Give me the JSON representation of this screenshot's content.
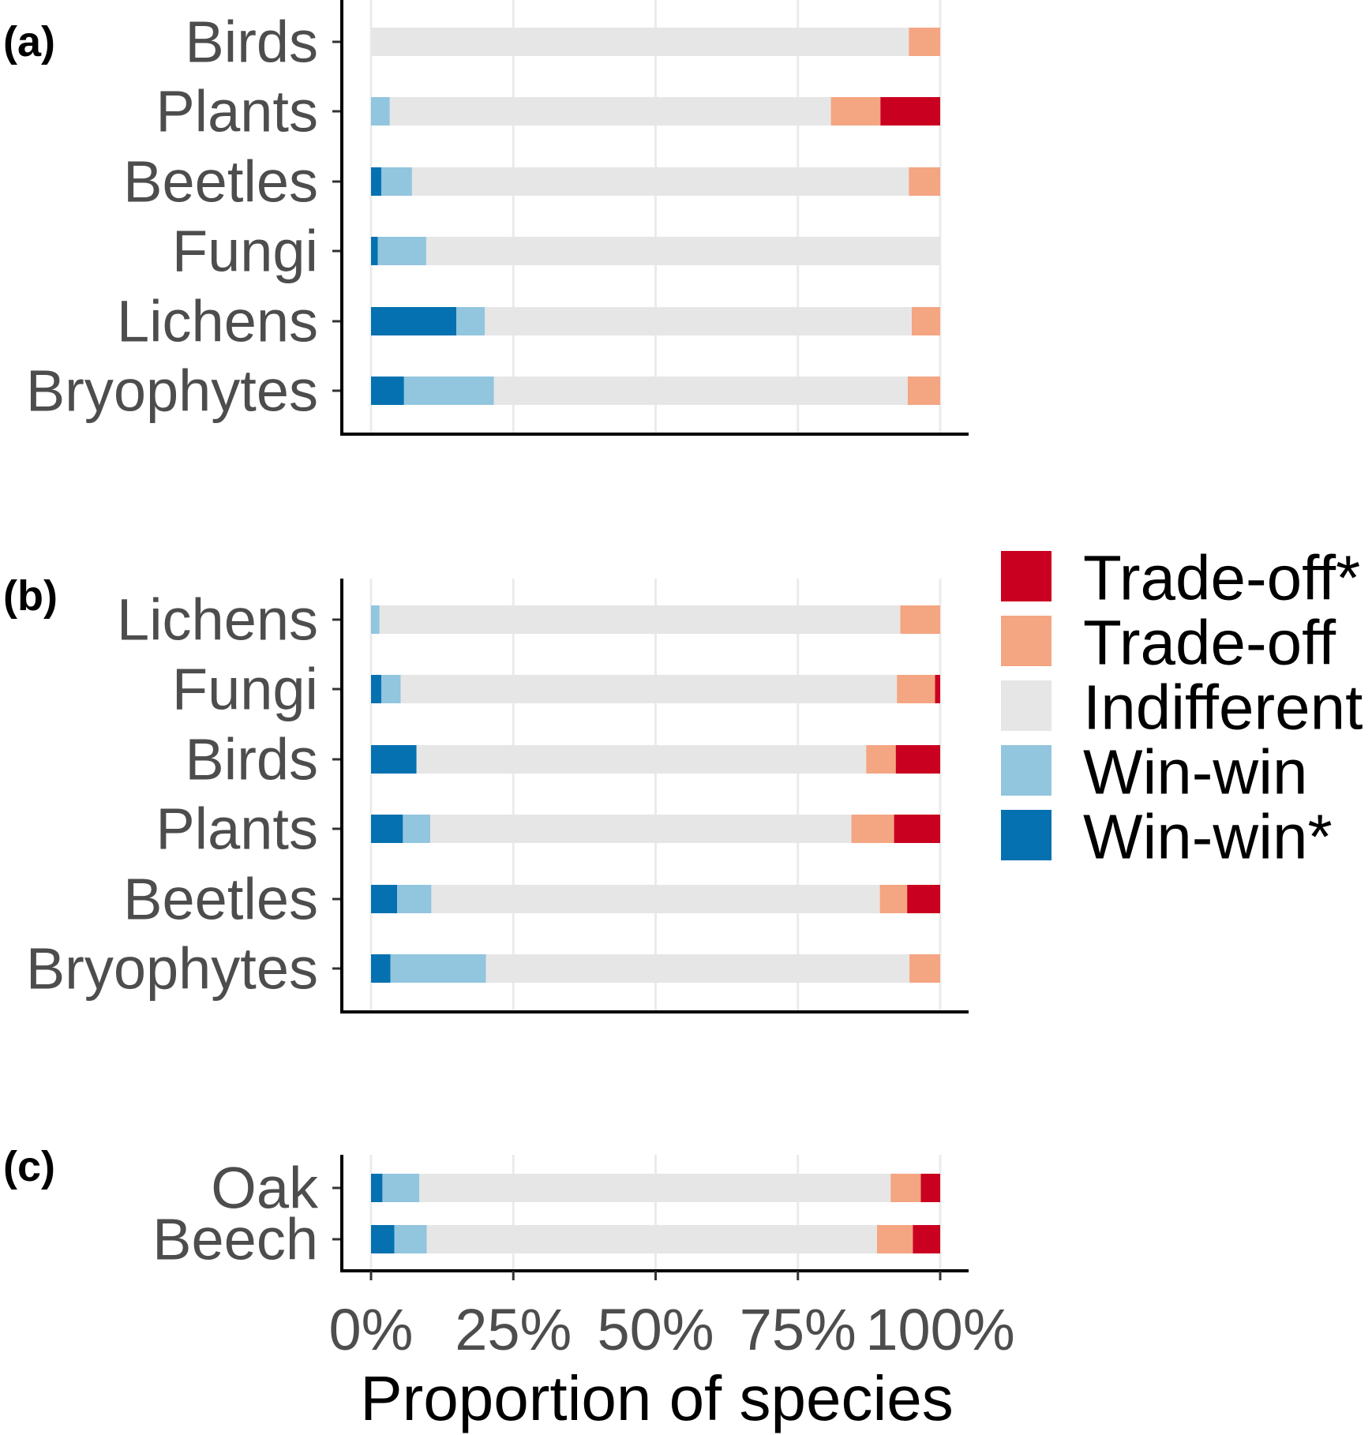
{
  "chart_data": [
    {
      "type": "bar",
      "orientation": "horizontal",
      "stacked": true,
      "panel_tag": "(a)",
      "categories": [
        "Birds",
        "Plants",
        "Beetles",
        "Fungi",
        "Lichens",
        "Bryophytes"
      ],
      "series": [
        {
          "name": "Win-win*",
          "values": [
            0,
            0,
            1.8,
            1.2,
            15.0,
            5.8
          ]
        },
        {
          "name": "Win-win",
          "values": [
            0,
            3.3,
            5.4,
            8.5,
            5.0,
            15.8
          ]
        },
        {
          "name": "Indifferent",
          "values": [
            94.5,
            77.5,
            87.3,
            90.3,
            75.0,
            72.7
          ]
        },
        {
          "name": "Trade-off",
          "values": [
            5.5,
            8.7,
            5.5,
            0,
            5.0,
            5.7
          ]
        },
        {
          "name": "Trade-off*",
          "values": [
            0,
            10.5,
            0,
            0,
            0,
            0
          ]
        }
      ],
      "xlim": [
        0,
        100
      ],
      "xgrid": true
    },
    {
      "type": "bar",
      "orientation": "horizontal",
      "stacked": true,
      "panel_tag": "(b)",
      "categories": [
        "Lichens",
        "Fungi",
        "Birds",
        "Plants",
        "Beetles",
        "Bryophytes"
      ],
      "series": [
        {
          "name": "Win-win*",
          "values": [
            0,
            1.8,
            8.0,
            5.6,
            4.6,
            3.4
          ]
        },
        {
          "name": "Win-win",
          "values": [
            1.5,
            3.4,
            0,
            4.8,
            6.0,
            16.8
          ]
        },
        {
          "name": "Indifferent",
          "values": [
            91.5,
            87.2,
            79.0,
            74.0,
            78.8,
            74.4
          ]
        },
        {
          "name": "Trade-off",
          "values": [
            7.0,
            6.7,
            5.2,
            7.5,
            4.8,
            5.4
          ]
        },
        {
          "name": "Trade-off*",
          "values": [
            0,
            0.9,
            7.8,
            8.1,
            5.8,
            0
          ]
        }
      ],
      "xlim": [
        0,
        100
      ],
      "xgrid": true
    },
    {
      "type": "bar",
      "orientation": "horizontal",
      "stacked": true,
      "panel_tag": "(c)",
      "categories": [
        "Oak",
        "Beech"
      ],
      "series": [
        {
          "name": "Win-win*",
          "values": [
            2.0,
            4.1
          ]
        },
        {
          "name": "Win-win",
          "values": [
            6.5,
            5.7
          ]
        },
        {
          "name": "Indifferent",
          "values": [
            82.8,
            79.1
          ]
        },
        {
          "name": "Trade-off",
          "values": [
            5.3,
            6.3
          ]
        },
        {
          "name": "Trade-off*",
          "values": [
            3.4,
            4.8
          ]
        }
      ],
      "xlim": [
        0,
        100
      ],
      "xticks": [
        "0%",
        "25%",
        "50%",
        "75%",
        "100%"
      ],
      "xlabel": "Proportion of species",
      "xgrid": true
    }
  ],
  "legend": {
    "placement": "right",
    "entries": [
      {
        "label": "Trade-off*",
        "color": "#ca0020"
      },
      {
        "label": "Trade-off",
        "color": "#f4a582"
      },
      {
        "label": "Indifferent",
        "color": "#e6e6e6"
      },
      {
        "label": "Win-win",
        "color": "#92c5de"
      },
      {
        "label": "Win-win*",
        "color": "#0571b0"
      }
    ]
  }
}
